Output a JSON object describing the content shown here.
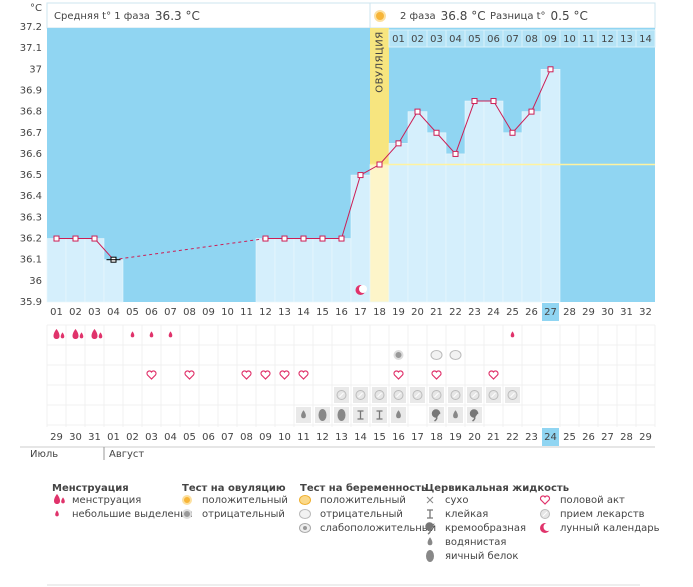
{
  "chart_data": {
    "type": "line",
    "unit": "°C",
    "phase1_label": "Средняя t° 1 фаза",
    "phase1_value": "36.3 °C",
    "phase2_label": "2 фаза",
    "phase2_value": "36.8 °C",
    "difference_label": "Разница t°",
    "difference_value": "0.5 °C",
    "ovulation_label": "ОВУЛЯЦИЯ",
    "ovulation_day": "18",
    "today": "27",
    "coverline": 36.55,
    "categories": [
      "01",
      "02",
      "03",
      "04",
      "05",
      "06",
      "07",
      "08",
      "09",
      "10",
      "11",
      "12",
      "13",
      "14",
      "15",
      "16",
      "17",
      "18",
      "19",
      "20",
      "21",
      "22",
      "23",
      "24",
      "25",
      "26",
      "27",
      "28",
      "29",
      "30",
      "31",
      "32"
    ],
    "values": [
      36.2,
      36.2,
      36.2,
      36.1,
      null,
      null,
      null,
      null,
      null,
      null,
      null,
      36.2,
      36.2,
      36.2,
      36.2,
      36.2,
      36.5,
      36.55,
      36.65,
      36.8,
      36.7,
      36.6,
      36.85,
      36.85,
      36.7,
      36.8,
      37.0,
      null,
      null,
      null,
      null,
      null
    ],
    "phase2_days": [
      "01",
      "02",
      "03",
      "04",
      "05",
      "06",
      "07",
      "08",
      "09",
      "10",
      "11",
      "12",
      "13",
      "14"
    ],
    "ylim": [
      35.9,
      37.2
    ],
    "yticks": [
      37.2,
      37.1,
      37,
      36.9,
      36.8,
      36.7,
      36.6,
      36.5,
      36.4,
      36.3,
      36.2,
      36.1,
      36,
      35.9
    ],
    "line_color": "#cc1e55",
    "dates": [
      "29",
      "30",
      "31",
      "01",
      "02",
      "03",
      "04",
      "05",
      "06",
      "07",
      "08",
      "09",
      "10",
      "11",
      "12",
      "13",
      "14",
      "15",
      "16",
      "17",
      "18",
      "19",
      "20",
      "21",
      "22",
      "23",
      "24",
      "25",
      "26",
      "27",
      "28",
      "29"
    ],
    "weekend_dates": [
      "03",
      "04",
      "10",
      "11",
      "17",
      "18",
      "24",
      "25"
    ],
    "months": [
      "Июль",
      "Август"
    ],
    "legend": [
      {
        "title": "Менструация",
        "items": [
          {
            "label": "менструация",
            "days": [
              "01",
              "02",
              "03"
            ]
          },
          {
            "label": "небольшие выделения",
            "days": [
              "05",
              "06",
              "07",
              "25"
            ]
          }
        ]
      },
      {
        "title": "Тест на овуляцию",
        "items": [
          {
            "label": "положительный",
            "days": []
          },
          {
            "label": "отрицательный",
            "days": [
              "19"
            ]
          }
        ]
      },
      {
        "title": "Тест на беременность",
        "items": [
          {
            "label": "положительный",
            "days": []
          },
          {
            "label": "отрицательный",
            "days": [
              "21",
              "22"
            ]
          },
          {
            "label": "слабоположительный",
            "days": []
          }
        ]
      },
      {
        "title": "Цервикальная жидкость",
        "items": [
          {
            "label": "сухо",
            "days": []
          },
          {
            "label": "клейкая",
            "days": [
              "17",
              "18"
            ]
          },
          {
            "label": "кремообразная",
            "days": [
              "21",
              "23"
            ]
          },
          {
            "label": "водянистая",
            "days": [
              "14",
              "19",
              "22"
            ]
          },
          {
            "label": "яичный белок",
            "days": [
              "15",
              "16"
            ]
          }
        ]
      },
      {
        "items": [
          {
            "label": "половой акт",
            "days": [
              "06",
              "08",
              "11",
              "12",
              "13",
              "14",
              "19",
              "21",
              "24"
            ]
          },
          {
            "label": "прием лекарств",
            "days": [
              "16",
              "17",
              "18",
              "19",
              "20",
              "21",
              "22",
              "23",
              "24",
              "25"
            ]
          },
          {
            "label": "лунный календарь",
            "days": [
              "17"
            ]
          }
        ]
      }
    ]
  }
}
